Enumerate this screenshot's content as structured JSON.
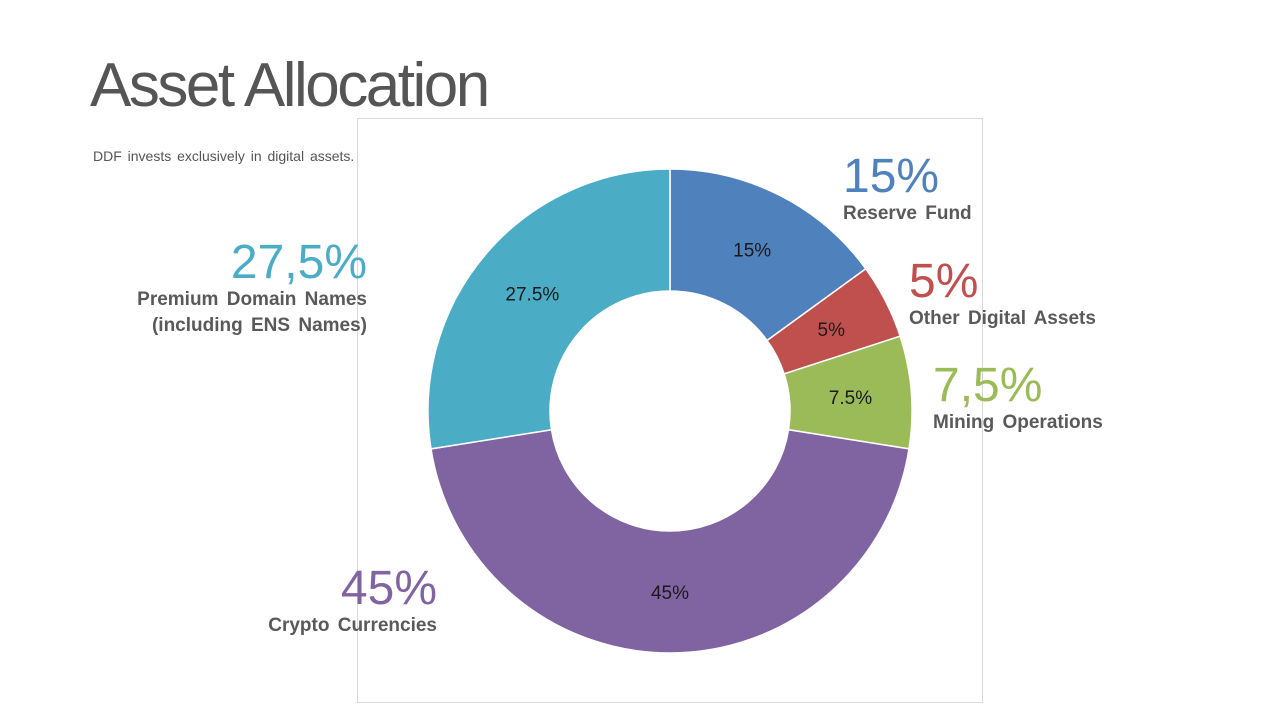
{
  "slide": {
    "title": "Asset Allocation",
    "subtitle": "DDF invests exclusively  in digital assets."
  },
  "chart_data": {
    "type": "pie",
    "subtype": "donut",
    "title": "",
    "start_angle_deg": 0,
    "direction": "clockwise",
    "slices": [
      {
        "name": "Reserve Fund",
        "value": 15,
        "data_label": "15%",
        "color": "#4F81BD"
      },
      {
        "name": "Other Digital Assets",
        "value": 5,
        "data_label": "5%",
        "color": "#C0504D"
      },
      {
        "name": "Mining Operations",
        "value": 7.5,
        "data_label": "7.5%",
        "color": "#9BBB59"
      },
      {
        "name": "Crypto Currencies",
        "value": 45,
        "data_label": "45%",
        "color": "#8064A2"
      },
      {
        "name": "Premium Domain Names (including ENS Names)",
        "value": 27.5,
        "data_label": "27.5%",
        "color": "#4BACC6"
      }
    ]
  },
  "callouts": {
    "reserve": {
      "pct": "15%",
      "label": "Reserve Fund",
      "color": "#4F81BD"
    },
    "other": {
      "pct": "5%",
      "label": "Other Digital Assets",
      "color": "#C0504D"
    },
    "mining": {
      "pct": "7,5%",
      "label": "Mining Operations",
      "color": "#9BBB59"
    },
    "crypto": {
      "pct": "45%",
      "label": "Crypto Currencies",
      "color": "#8064A2"
    },
    "domain": {
      "pct": "27,5%",
      "label_line1": "Premium Domain Names",
      "label_line2": "(including ENS Names)",
      "color": "#4BACC6"
    }
  }
}
